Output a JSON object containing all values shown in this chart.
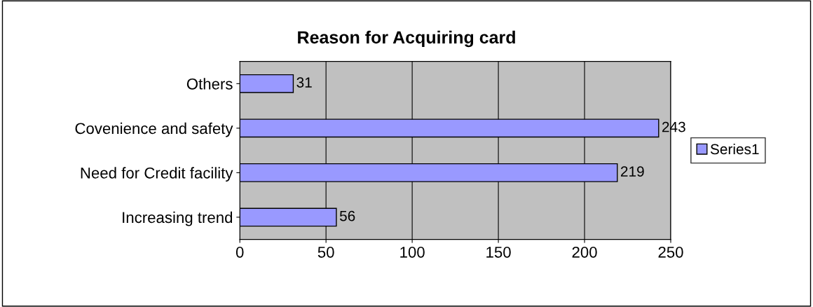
{
  "chart_data": {
    "type": "bar",
    "orientation": "horizontal",
    "title": "Reason for Acquiring card",
    "categories": [
      "Others",
      "Covenience and safety",
      "Need for Credit facility",
      "Increasing trend"
    ],
    "series": [
      {
        "name": "Series1",
        "color": "#9999ff",
        "values": [
          31,
          243,
          219,
          56
        ]
      }
    ],
    "xlim": [
      0,
      250
    ],
    "xticks": [
      0,
      50,
      100,
      150,
      200,
      250
    ],
    "grid": "x",
    "legend": "right",
    "data_labels": true
  }
}
